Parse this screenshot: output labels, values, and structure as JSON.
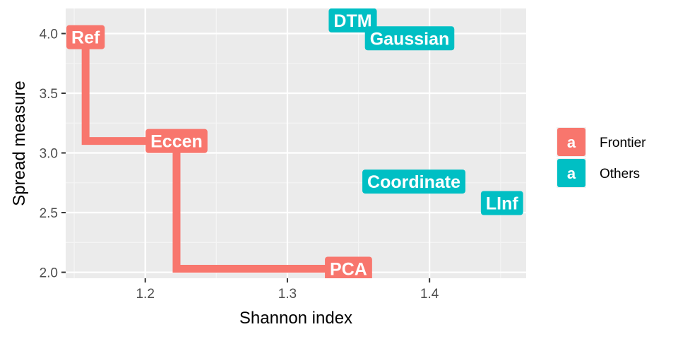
{
  "chart_data": {
    "type": "scatter",
    "xlabel": "Shannon index",
    "ylabel": "Spread measure",
    "xlim": [
      1.144,
      1.468
    ],
    "ylim": [
      1.95,
      4.21
    ],
    "x_ticks": [
      1.2,
      1.3,
      1.4
    ],
    "x_tick_labels": [
      "1.2",
      "1.3",
      "1.4"
    ],
    "y_ticks": [
      2.0,
      2.5,
      3.0,
      3.5,
      4.0
    ],
    "y_tick_labels": [
      "2.0",
      "2.5",
      "3.0",
      "3.5",
      "4.0"
    ],
    "grid": true,
    "legend_position": "right",
    "colors": {
      "Frontier": "#F8766D",
      "Others": "#00BFC4"
    },
    "series": [
      {
        "name": "Frontier",
        "points": [
          {
            "label": "Ref",
            "x": 1.158,
            "y": 3.97
          },
          {
            "label": "Eccen",
            "x": 1.222,
            "y": 3.1
          },
          {
            "label": "PCA",
            "x": 1.343,
            "y": 2.03
          }
        ]
      },
      {
        "name": "Others",
        "points": [
          {
            "label": "DTM",
            "x": 1.346,
            "y": 4.11
          },
          {
            "label": "Gaussian",
            "x": 1.386,
            "y": 3.96
          },
          {
            "label": "Coordinate",
            "x": 1.389,
            "y": 2.76
          },
          {
            "label": "LInf",
            "x": 1.451,
            "y": 2.58
          }
        ]
      }
    ],
    "frontier_step_line": [
      {
        "x": 1.158,
        "y": 3.97
      },
      {
        "x": 1.158,
        "y": 3.1
      },
      {
        "x": 1.222,
        "y": 3.1
      },
      {
        "x": 1.222,
        "y": 2.03
      },
      {
        "x": 1.343,
        "y": 2.03
      }
    ],
    "legend": {
      "key_glyph": "a",
      "entries": [
        "Frontier",
        "Others"
      ]
    }
  }
}
